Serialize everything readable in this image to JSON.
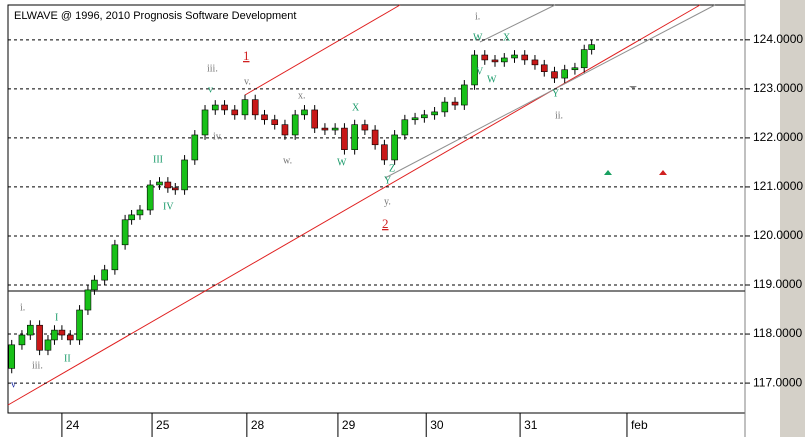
{
  "chart_data": {
    "type": "candlestick",
    "title": "ELWAVE @ 1996, 2010 Prognosis Software Development",
    "x": [
      -0.54,
      -0.43,
      -0.34,
      -0.24,
      -0.15,
      -0.08,
      0,
      0.09,
      0.19,
      0.28,
      0.35,
      0.46,
      0.57,
      0.68,
      0.75,
      0.84,
      0.95,
      1.05,
      1.14,
      1.22,
      1.32,
      1.43,
      1.54,
      1.65,
      1.75,
      1.86,
      1.97,
      2.08,
      2.18,
      2.29,
      2.4,
      2.51,
      2.61,
      2.72,
      2.83,
      2.94,
      3.04,
      3.15,
      3.26,
      3.37,
      3.47,
      3.58,
      3.69,
      3.8,
      3.9,
      4.01,
      4.12,
      4.23,
      4.33,
      4.44,
      4.55,
      4.66,
      4.76,
      4.87,
      4.98,
      5.09,
      5.19,
      5.3,
      5.41,
      5.52,
      5.62,
      5.7
    ],
    "open": [
      117.3,
      117.78,
      117.98,
      118.18,
      117.67,
      117.88,
      118.08,
      117.98,
      117.88,
      118.49,
      118.9,
      119.1,
      119.31,
      119.82,
      120.33,
      120.43,
      120.53,
      121.04,
      121.1,
      120.98,
      120.94,
      121.55,
      122.06,
      122.57,
      122.67,
      122.57,
      122.47,
      122.78,
      122.47,
      122.37,
      122.27,
      122.06,
      122.47,
      122.57,
      122.2,
      122.16,
      122.2,
      121.76,
      122.27,
      122.16,
      121.86,
      121.55,
      122.06,
      122.37,
      122.41,
      122.47,
      122.53,
      122.73,
      122.67,
      123.08,
      123.69,
      123.59,
      123.55,
      123.63,
      123.69,
      123.59,
      123.49,
      123.35,
      123.22,
      123.39,
      123.43,
      123.8
    ],
    "high": [
      117.88,
      118.08,
      118.28,
      118.28,
      117.98,
      118.18,
      118.18,
      118.08,
      118.59,
      119.0,
      119.2,
      119.41,
      119.92,
      120.43,
      120.53,
      120.63,
      121.14,
      121.2,
      121.2,
      121.08,
      121.65,
      122.16,
      122.67,
      122.77,
      122.77,
      122.67,
      122.88,
      122.88,
      122.57,
      122.47,
      122.37,
      122.57,
      122.67,
      122.67,
      122.3,
      122.3,
      122.3,
      122.37,
      122.37,
      122.26,
      121.96,
      122.16,
      122.47,
      122.51,
      122.57,
      122.63,
      122.83,
      122.83,
      123.18,
      123.79,
      123.79,
      123.69,
      123.73,
      123.79,
      123.79,
      123.69,
      123.59,
      123.45,
      123.49,
      123.53,
      123.9,
      124.0
    ],
    "low": [
      117.2,
      117.68,
      117.88,
      117.57,
      117.57,
      117.78,
      117.88,
      117.78,
      117.78,
      118.39,
      118.8,
      119.0,
      119.21,
      119.72,
      120.23,
      120.33,
      120.43,
      120.94,
      120.88,
      120.84,
      120.84,
      121.45,
      121.96,
      122.47,
      122.47,
      122.37,
      122.37,
      122.37,
      122.27,
      122.17,
      121.96,
      121.96,
      122.37,
      122.1,
      122.06,
      122.06,
      121.66,
      121.66,
      122.06,
      121.76,
      121.45,
      121.45,
      121.96,
      122.27,
      122.31,
      122.37,
      122.43,
      122.57,
      122.57,
      122.98,
      123.49,
      123.45,
      123.45,
      123.53,
      123.49,
      123.39,
      123.25,
      123.12,
      123.12,
      123.29,
      123.33,
      123.7
    ],
    "close": [
      117.78,
      117.98,
      118.18,
      117.67,
      117.88,
      118.08,
      117.98,
      117.88,
      118.49,
      118.9,
      119.1,
      119.31,
      119.82,
      120.33,
      120.43,
      120.53,
      121.04,
      121.1,
      120.98,
      120.94,
      121.55,
      122.06,
      122.57,
      122.67,
      122.57,
      122.47,
      122.78,
      122.47,
      122.37,
      122.27,
      122.06,
      122.47,
      122.57,
      122.2,
      122.16,
      122.2,
      121.76,
      122.27,
      122.16,
      121.86,
      121.55,
      122.06,
      122.37,
      122.41,
      122.47,
      122.53,
      122.73,
      122.67,
      123.08,
      123.69,
      123.59,
      123.55,
      123.63,
      123.69,
      123.59,
      123.49,
      123.35,
      123.22,
      123.39,
      123.43,
      123.8,
      123.9
    ],
    "up_color": "#18c018",
    "down_color": "#c81818",
    "xlim": [
      -0.58,
      7.35
    ],
    "xticks": [
      {
        "value": 0,
        "label": "24"
      },
      {
        "value": 0.97,
        "label": "25"
      },
      {
        "value": 1.99,
        "label": "28"
      },
      {
        "value": 2.97,
        "label": "29"
      },
      {
        "value": 3.92,
        "label": "30"
      },
      {
        "value": 4.93,
        "label": "31"
      },
      {
        "value": 6.08,
        "label": "feb"
      }
    ],
    "ylim": [
      116.39,
      124.71
    ],
    "yticks": [
      {
        "value": 117,
        "label": "117.0000"
      },
      {
        "value": 118,
        "label": "118.0000"
      },
      {
        "value": 119,
        "label": "119.0000"
      },
      {
        "value": 120,
        "label": "120.0000"
      },
      {
        "value": 121,
        "label": "121.0000"
      },
      {
        "value": 122,
        "label": "122.0000"
      },
      {
        "value": 123,
        "label": "123.0000"
      },
      {
        "value": 124,
        "label": "124.0000"
      }
    ],
    "grid": true,
    "annotations": [
      "i.",
      "I",
      "iii.",
      "II",
      "v",
      "III",
      "IV",
      "iii.",
      "v",
      "v.",
      "1",
      "iv.",
      "x.",
      "w.",
      "X",
      "W",
      "Y",
      "Z",
      "y.",
      "2",
      "i.",
      "W",
      "X",
      "V",
      "W",
      "Y",
      "ii."
    ]
  }
}
